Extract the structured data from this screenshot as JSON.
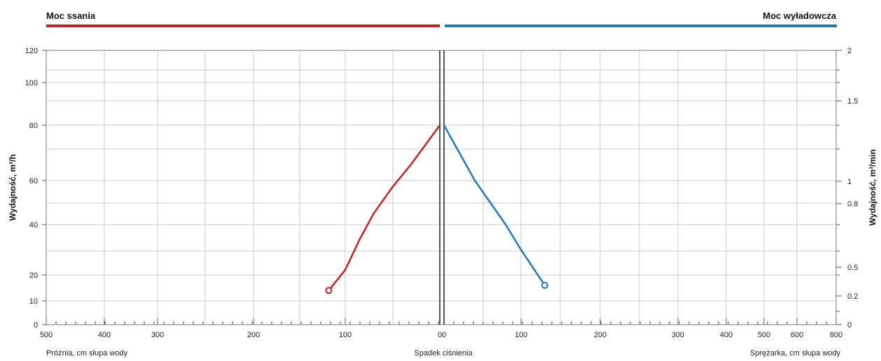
{
  "chart_data": {
    "type": "line",
    "left_panel": {
      "title": "Moc ssania",
      "xlabel": "Próżnia, cm słupa wody",
      "x_tick_labels": [
        "500",
        "400",
        "300",
        "200",
        "100",
        "0"
      ],
      "series": [
        {
          "name": "Moc ssania",
          "color": "#cc1f1f",
          "x": [
            118,
            100,
            85,
            70,
            50,
            30,
            0
          ],
          "y": [
            14,
            22,
            34,
            45,
            57,
            66,
            80
          ],
          "marker_end": "open-circle"
        }
      ]
    },
    "right_panel": {
      "title": "Moc wyładowcza",
      "xlabel": "Sprężarka, cm słupa wody",
      "x_tick_labels": [
        "0",
        "100",
        "200",
        "300",
        "400",
        "500",
        "600",
        "800"
      ],
      "series": [
        {
          "name": "Moc wyładowcza",
          "color": "#1f78c8",
          "x": [
            0,
            20,
            40,
            60,
            80,
            100,
            130
          ],
          "y": [
            80,
            70,
            60,
            50,
            40,
            30,
            16
          ],
          "marker_end": "open-circle"
        }
      ]
    },
    "center_label": "Spadek ciśnienia",
    "ylabel_left": "Wydajność, m³/h",
    "ylabel_right": "Wydajność, m³/min",
    "y_left_ticks": [
      "0",
      "10",
      "20",
      "40",
      "60",
      "80",
      "100",
      "120"
    ],
    "y_right_ticks": [
      "0",
      "0.2",
      "0.5",
      "0.8",
      "1",
      "1.5",
      "2"
    ],
    "ylim": [
      0,
      120
    ],
    "grid": true,
    "legend": "none"
  }
}
